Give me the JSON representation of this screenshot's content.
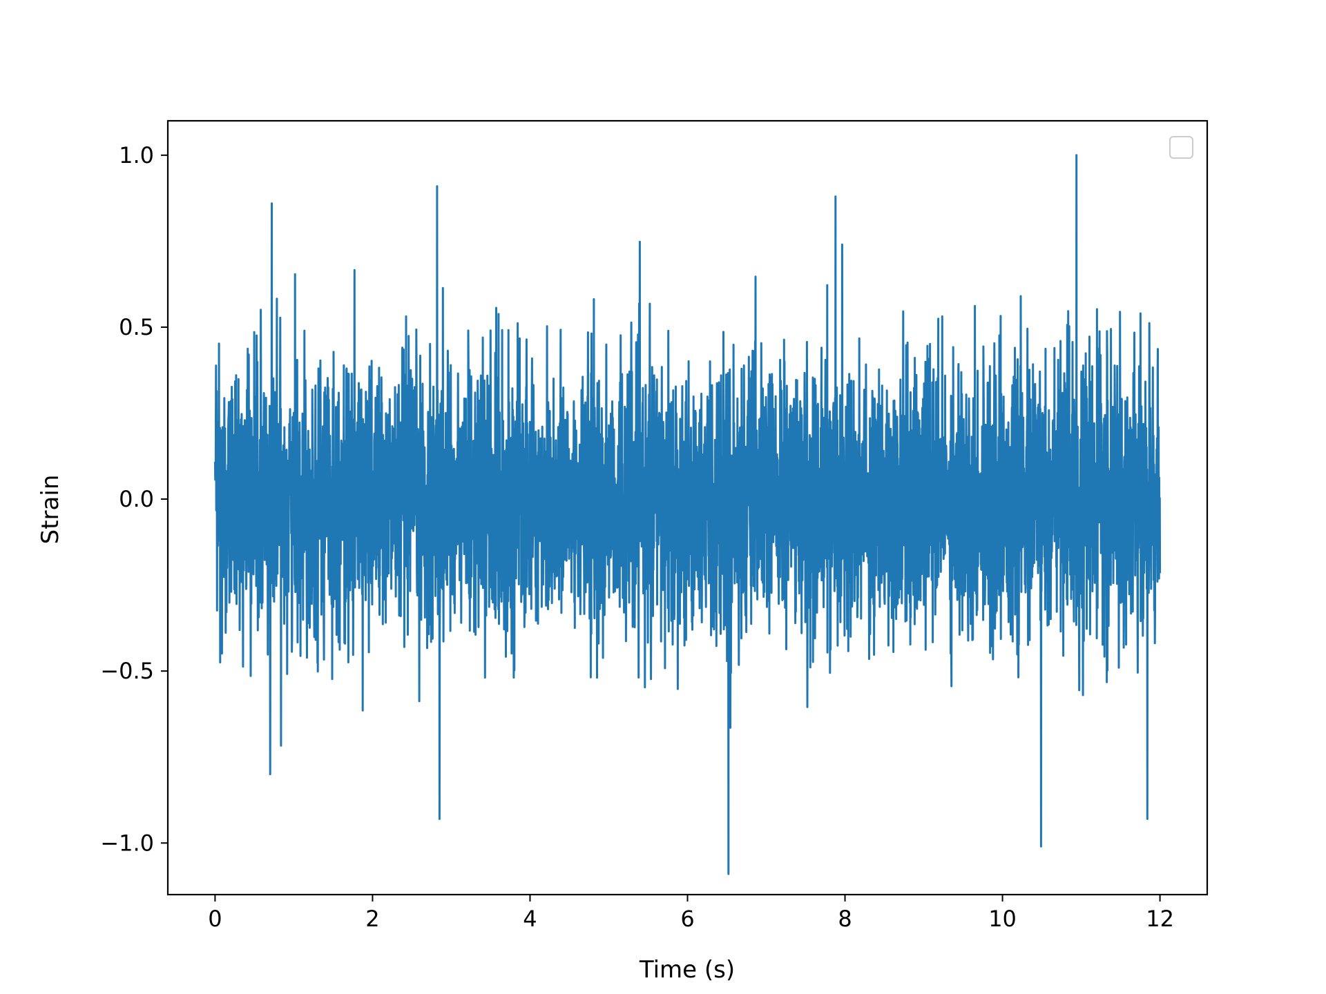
{
  "chart_data": {
    "type": "line",
    "title": "",
    "xlabel": "Time (s)",
    "ylabel": "Strain",
    "xlim": [
      -0.6,
      12.6
    ],
    "ylim": [
      -1.15,
      1.1
    ],
    "xticks": [
      0,
      2,
      4,
      6,
      8,
      10,
      12
    ],
    "xtick_labels": [
      "0",
      "2",
      "4",
      "6",
      "8",
      "10",
      "12"
    ],
    "yticks": [
      -1.0,
      -0.5,
      0.0,
      0.5,
      1.0
    ],
    "ytick_labels": [
      "−1.0",
      "−0.5",
      "0.0",
      "0.5",
      "1.0"
    ],
    "grid": false,
    "legend": {
      "position": "upper right",
      "entries": []
    },
    "series": [
      {
        "color": "#1f77b4",
        "x_range": [
          0,
          12
        ],
        "notable_points": [
          {
            "x": 0.72,
            "y": 0.86
          },
          {
            "x": 0.7,
            "y": -0.8
          },
          {
            "x": 2.82,
            "y": 0.91
          },
          {
            "x": 2.85,
            "y": -0.93
          },
          {
            "x": 6.52,
            "y": -1.09
          },
          {
            "x": 7.88,
            "y": 0.88
          },
          {
            "x": 10.49,
            "y": -1.01
          },
          {
            "x": 10.94,
            "y": 1.0
          },
          {
            "x": 11.84,
            "y": -0.93
          }
        ],
        "envelope": {
          "typical_min": -0.45,
          "typical_max": 0.45
        }
      }
    ]
  }
}
